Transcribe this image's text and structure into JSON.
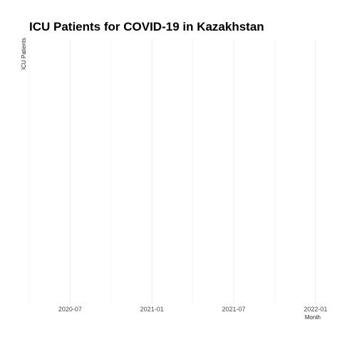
{
  "chart_data": {
    "type": "line",
    "title": "ICU Patients for COVID-19 in Kazakhstan",
    "xlabel": "Month",
    "ylabel": "ICU Patients",
    "x_ticks": [
      "2020-07",
      "2021-01",
      "2021-07",
      "2022-01"
    ],
    "xlim": [
      "2020-04",
      "2022-02"
    ],
    "series": [],
    "grid": true,
    "legend": "none",
    "colors": {
      "title": "#000000",
      "grid": "#ebebeb",
      "tick_text": "#4d4d4d",
      "background": "#ffffff"
    }
  }
}
